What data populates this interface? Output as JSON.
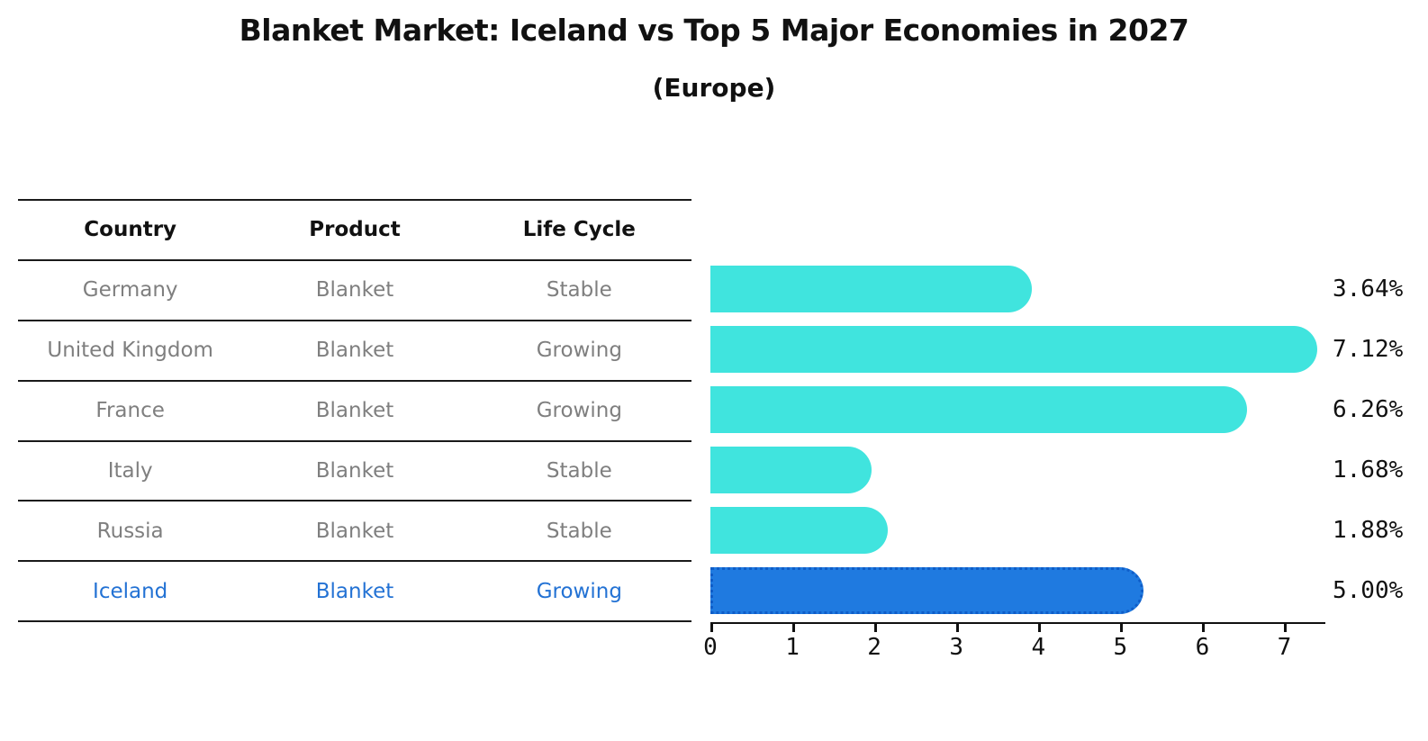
{
  "title": "Blanket Market: Iceland vs Top 5 Major Economies in 2027",
  "subtitle": "(Europe)",
  "table": {
    "headers": [
      "Country",
      "Product",
      "Life Cycle"
    ],
    "rows": [
      {
        "country": "Germany",
        "product": "Blanket",
        "life_cycle": "Stable",
        "highlight": false
      },
      {
        "country": "United Kingdom",
        "product": "Blanket",
        "life_cycle": "Growing",
        "highlight": false
      },
      {
        "country": "France",
        "product": "Blanket",
        "life_cycle": "Growing",
        "highlight": false
      },
      {
        "country": "Italy",
        "product": "Blanket",
        "life_cycle": "Stable",
        "highlight": false
      },
      {
        "country": "Russia",
        "product": "Blanket",
        "life_cycle": "Stable",
        "highlight": false
      },
      {
        "country": "Iceland",
        "product": "Blanket",
        "life_cycle": "Growing",
        "highlight": true
      }
    ]
  },
  "chart_data": {
    "type": "bar",
    "orientation": "horizontal",
    "title": "Blanket Market: Iceland vs Top 5 Major Economies in 2027",
    "subtitle": "(Europe)",
    "categories": [
      "Germany",
      "United Kingdom",
      "France",
      "Italy",
      "Russia",
      "Iceland"
    ],
    "values": [
      3.64,
      7.12,
      6.26,
      1.68,
      1.88,
      5.0
    ],
    "value_labels": [
      "3.64%",
      "7.12%",
      "6.26%",
      "1.68%",
      "1.88%",
      "5.00%"
    ],
    "highlight_index": 5,
    "x_ticks": [
      0,
      1,
      2,
      3,
      4,
      5,
      6,
      7
    ],
    "xlim": [
      0,
      7.5
    ],
    "grid": false,
    "legend": false
  },
  "colors": {
    "bar": "#40e4de",
    "highlight_bar": "#1f7ae0",
    "highlight_edge": "#0f5dc8",
    "table_text": "#7f7f7f",
    "highlight_text": "#2372d4",
    "axis": "#111111"
  }
}
